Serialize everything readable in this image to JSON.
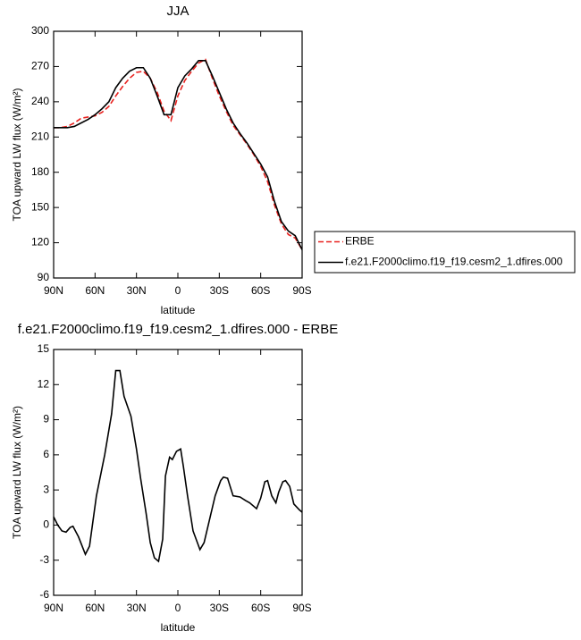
{
  "chart_data": [
    {
      "type": "line",
      "title": "JJA",
      "xlabel": "latitude",
      "ylabel": "TOA upward LW flux (W/m²)",
      "x": [
        90,
        85,
        80,
        75,
        70,
        65,
        60,
        55,
        50,
        45,
        40,
        35,
        30,
        25,
        20,
        15,
        10,
        5,
        0,
        -5,
        -10,
        -15,
        -20,
        -25,
        -30,
        -35,
        -40,
        -45,
        -50,
        -55,
        -60,
        -65,
        -70,
        -75,
        -80,
        -85,
        -90
      ],
      "series": [
        {
          "name": "ERBE",
          "color": "#e8211e",
          "linestyle": "dashed",
          "values": [
            218,
            218,
            219,
            222,
            226,
            227,
            228,
            231,
            236,
            245,
            253,
            260,
            265,
            266,
            260,
            248,
            232,
            224,
            245,
            258,
            266,
            273,
            276,
            260,
            245,
            232,
            220,
            212,
            204,
            195,
            185,
            172,
            152,
            136,
            127,
            124,
            114
          ]
        },
        {
          "name": "f.e21.F2000climo.f19_f19.cesm2_1.dfires.000",
          "color": "#000000",
          "linestyle": "solid",
          "values": [
            218,
            218,
            218,
            219,
            222,
            225,
            229,
            234,
            240,
            252,
            260,
            266,
            269,
            269,
            260,
            245,
            229,
            229,
            252,
            262,
            268,
            275,
            275,
            262,
            248,
            234,
            222,
            213,
            205,
            196,
            187,
            176,
            155,
            138,
            130,
            126,
            114
          ]
        }
      ],
      "xlim": [
        90,
        -90
      ],
      "xticks": [
        {
          "value": 90,
          "label": "90N"
        },
        {
          "value": 60,
          "label": "60N"
        },
        {
          "value": 30,
          "label": "30N"
        },
        0,
        {
          "value": -30,
          "label": "30S"
        },
        {
          "value": -60,
          "label": "60S"
        },
        {
          "value": -90,
          "label": "90S"
        }
      ],
      "ylim": [
        90,
        300
      ],
      "yticks": [
        90,
        120,
        150,
        180,
        210,
        240,
        270,
        300
      ],
      "legend": "right"
    },
    {
      "type": "line",
      "title": "f.e21.F2000climo.f19_f19.cesm2_1.dfires.000 - ERBE",
      "xlabel": "latitude",
      "ylabel": "TOA upward LW flux (W/m²)",
      "x": [
        90,
        87,
        84,
        81,
        78,
        76,
        72,
        67,
        64,
        59,
        53,
        48,
        45,
        42,
        39,
        34,
        30,
        27,
        23,
        20,
        17,
        14,
        11,
        9,
        6,
        4,
        1,
        -2,
        -4,
        -7,
        -11,
        -16,
        -19,
        -23,
        -27,
        -31,
        -33,
        -36,
        -40,
        -45,
        -49,
        -52,
        -57,
        -60,
        -63,
        -65,
        -68,
        -71,
        -73,
        -76,
        -78,
        -81,
        -84,
        -88,
        -90
      ],
      "values": [
        0.7,
        0,
        -0.5,
        -0.6,
        -0.2,
        -0.1,
        -1,
        -2.5,
        -1.8,
        2.5,
        6,
        9.5,
        13.2,
        13.2,
        11,
        9.3,
        6.5,
        4,
        1,
        -1.5,
        -2.8,
        -3.1,
        -1.2,
        4.2,
        5.8,
        5.6,
        6.3,
        6.5,
        5,
        2.5,
        -0.5,
        -2.1,
        -1.5,
        0.5,
        2.5,
        3.8,
        4.1,
        4,
        2.5,
        2.4,
        2.1,
        1.9,
        1.4,
        2.3,
        3.7,
        3.8,
        2.5,
        1.9,
        2.8,
        3.7,
        3.8,
        3.3,
        1.8,
        1.3,
        1.1
      ],
      "color": "#000000",
      "xlim": [
        90,
        -90
      ],
      "xticks": [
        {
          "value": 90,
          "label": "90N"
        },
        {
          "value": 60,
          "label": "60N"
        },
        {
          "value": 30,
          "label": "30N"
        },
        0,
        {
          "value": -30,
          "label": "30S"
        },
        {
          "value": -60,
          "label": "60S"
        },
        {
          "value": -90,
          "label": "90S"
        }
      ],
      "ylim": [
        -6,
        15
      ],
      "yticks": [
        -6,
        -3,
        0,
        3,
        6,
        9,
        12,
        15
      ]
    }
  ]
}
